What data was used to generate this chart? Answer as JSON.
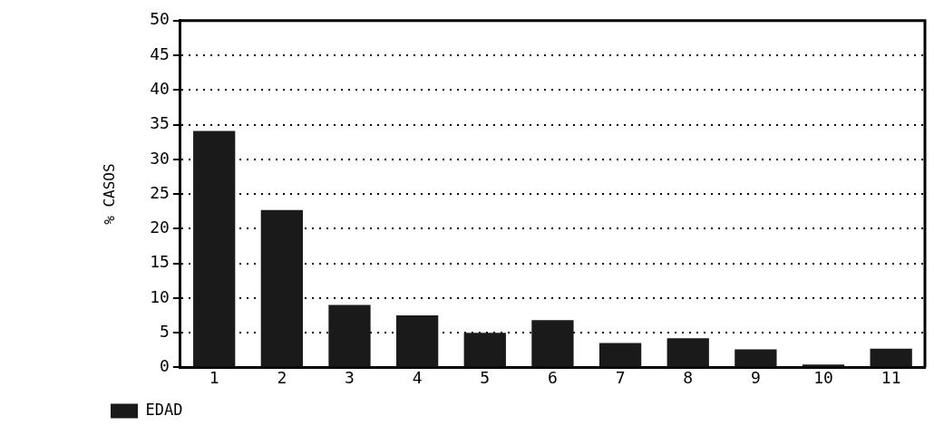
{
  "chart_data": {
    "type": "bar",
    "ylabel": "% CASOS",
    "categories": [
      "1",
      "2",
      "3",
      "4",
      "5",
      "6",
      "7",
      "8",
      "9",
      "10",
      "11"
    ],
    "series": [
      {
        "name": "EDAD",
        "color": "#1a1a1a",
        "values": [
          34.1,
          22.7,
          9.0,
          7.5,
          5.0,
          6.8,
          3.5,
          4.2,
          2.6,
          0.4,
          2.7
        ]
      }
    ],
    "ylim": [
      0,
      50
    ],
    "yticks": [
      0,
      5,
      10,
      15,
      20,
      25,
      30,
      35,
      40,
      45,
      50
    ],
    "grid": "y",
    "legend": "bottom left"
  }
}
